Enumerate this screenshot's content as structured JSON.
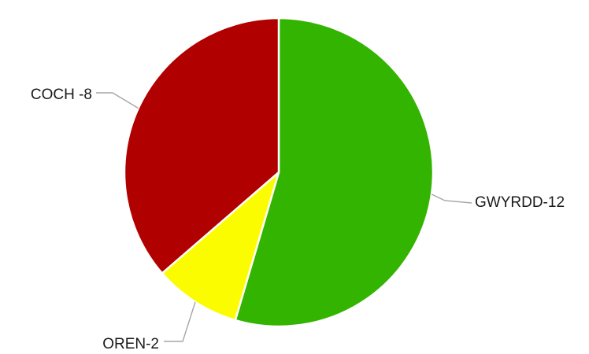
{
  "chart_data": {
    "type": "pie",
    "title": "",
    "legend": "none",
    "slices": [
      {
        "category": "GWYRDD",
        "value": 12,
        "label": "GWYRDD-12",
        "color": "#33b400"
      },
      {
        "category": "OREN",
        "value": 2,
        "label": "OREN-2",
        "color": "#fcfc00"
      },
      {
        "category": "COCH",
        "value": 8,
        "label": "COCH -8",
        "color": "#b10000"
      }
    ]
  }
}
